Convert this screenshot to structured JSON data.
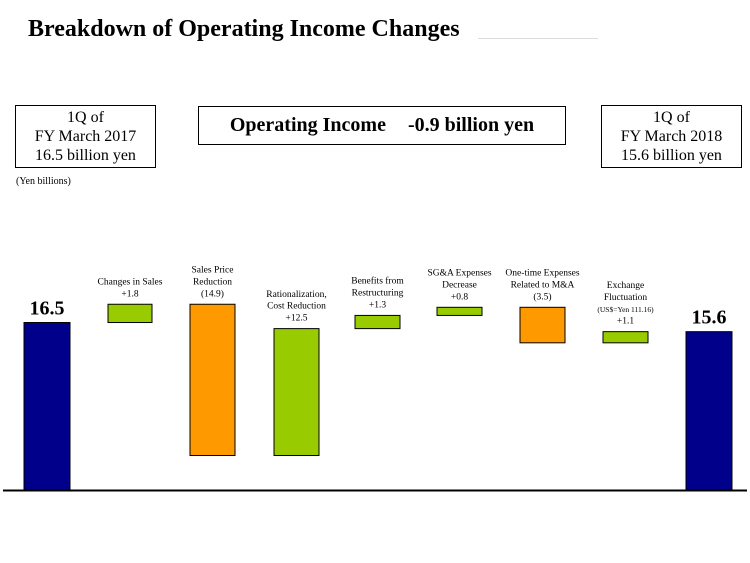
{
  "page": {
    "title": "Breakdown of Operating Income Changes",
    "units": "(Yen billions)",
    "start_box": [
      "1Q of",
      "FY March 2017",
      "16.5 billion yen"
    ],
    "end_box": [
      "1Q of",
      "FY March 2018",
      "15.6 billion yen"
    ],
    "summary": {
      "label": "Operating Income",
      "value": "-0.9 billion yen"
    }
  },
  "chart_data": {
    "type": "bar",
    "subtype": "waterfall",
    "title": "Breakdown of Operating Income Changes",
    "ylabel": "(Yen billions)",
    "ylim": [
      0,
      23.7
    ],
    "grid": false,
    "colors": {
      "total": "#00008b",
      "increase": "#99cc00",
      "decrease": "#ff9900"
    },
    "steps": [
      {
        "label_lines": [
          "16.5"
        ],
        "kind": "total",
        "value": 16.5,
        "value_label": "16.5"
      },
      {
        "label_lines": [
          "Changes in Sales",
          "+1.8"
        ],
        "kind": "increase",
        "value": 1.8
      },
      {
        "label_lines": [
          "Sales Price",
          "Reduction",
          "(14.9)"
        ],
        "kind": "decrease",
        "value": -14.9
      },
      {
        "label_lines": [
          "Rationalization,",
          "Cost Reduction",
          "+12.5"
        ],
        "kind": "increase",
        "value": 12.5
      },
      {
        "label_lines": [
          "Benefits from",
          "Restructuring",
          "+1.3"
        ],
        "kind": "increase",
        "value": 1.3
      },
      {
        "label_lines": [
          "SG&A Expenses",
          "Decrease",
          "+0.8"
        ],
        "kind": "increase",
        "value": 0.8
      },
      {
        "label_lines": [
          "One-time Expenses",
          "Related to M&A",
          "(3.5)"
        ],
        "kind": "decrease",
        "value": -3.5
      },
      {
        "label_lines": [
          "Exchange",
          "Fluctuation",
          "(US$=Yen 111.16)",
          "+1.1"
        ],
        "kind": "increase",
        "value": 1.1
      },
      {
        "label_lines": [
          "15.6"
        ],
        "kind": "total",
        "value": 15.6,
        "value_label": "15.6"
      }
    ]
  }
}
